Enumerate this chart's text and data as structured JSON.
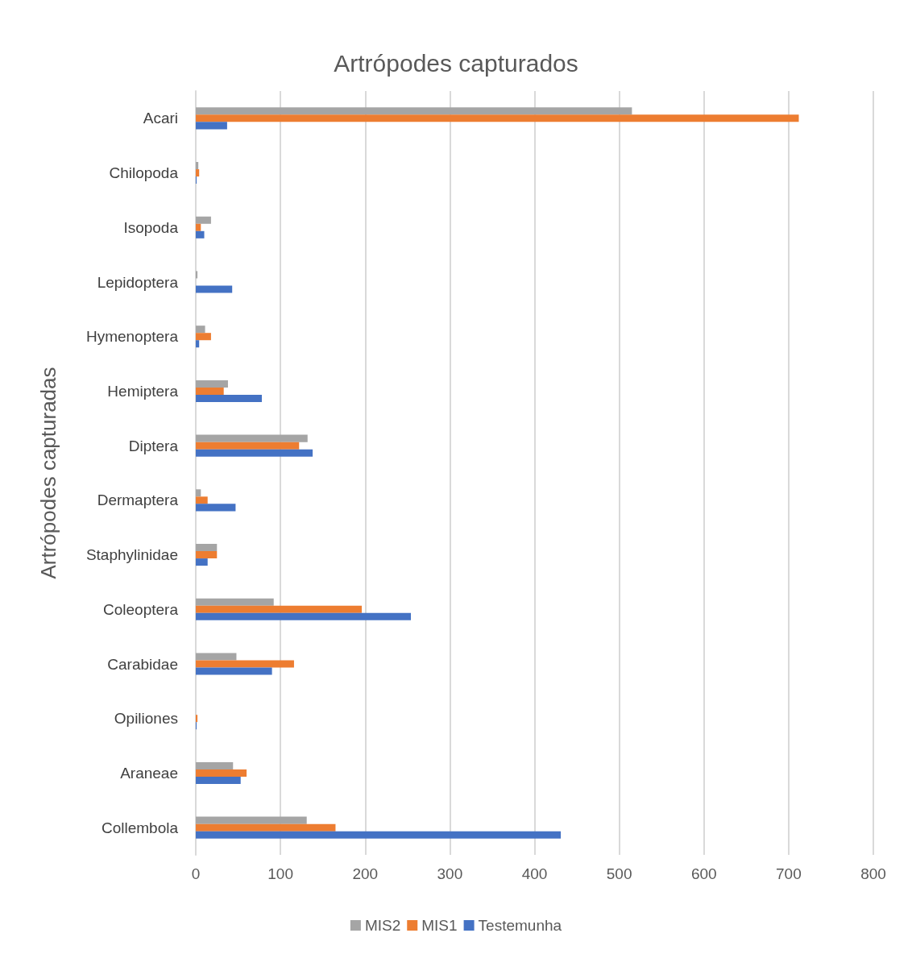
{
  "chart_data": {
    "type": "bar",
    "orientation": "horizontal",
    "title": "Artrópodes capturados",
    "ylabel": "Artrópodes capturadas",
    "categories": [
      "Acari",
      "Chilopoda",
      "Isopoda",
      "Lepidoptera",
      "Hymenoptera",
      "Hemiptera",
      "Diptera",
      "Dermaptera",
      "Staphylinidae",
      "Coleoptera",
      "Carabidae",
      "Opiliones",
      "Araneae",
      "Collembola"
    ],
    "series": [
      {
        "name": "MIS2",
        "color": "#a5a5a5",
        "values": [
          515,
          3,
          18,
          2,
          11,
          38,
          132,
          6,
          25,
          92,
          48,
          null,
          44,
          131
        ]
      },
      {
        "name": "MIS1",
        "color": "#ed7d31",
        "values": [
          712,
          4,
          6,
          0,
          18,
          33,
          122,
          14,
          25,
          196,
          116,
          2,
          60,
          165
        ]
      },
      {
        "name": "Testemunha",
        "color": "#4472c4",
        "values": [
          37,
          1,
          10,
          43,
          4,
          78,
          138,
          47,
          14,
          254,
          90,
          1,
          53,
          431
        ]
      }
    ],
    "xlim": [
      0,
      800
    ],
    "xticks": [
      0,
      100,
      200,
      300,
      400,
      500,
      600,
      700,
      800
    ],
    "grid": "x",
    "legend": "bottom"
  }
}
